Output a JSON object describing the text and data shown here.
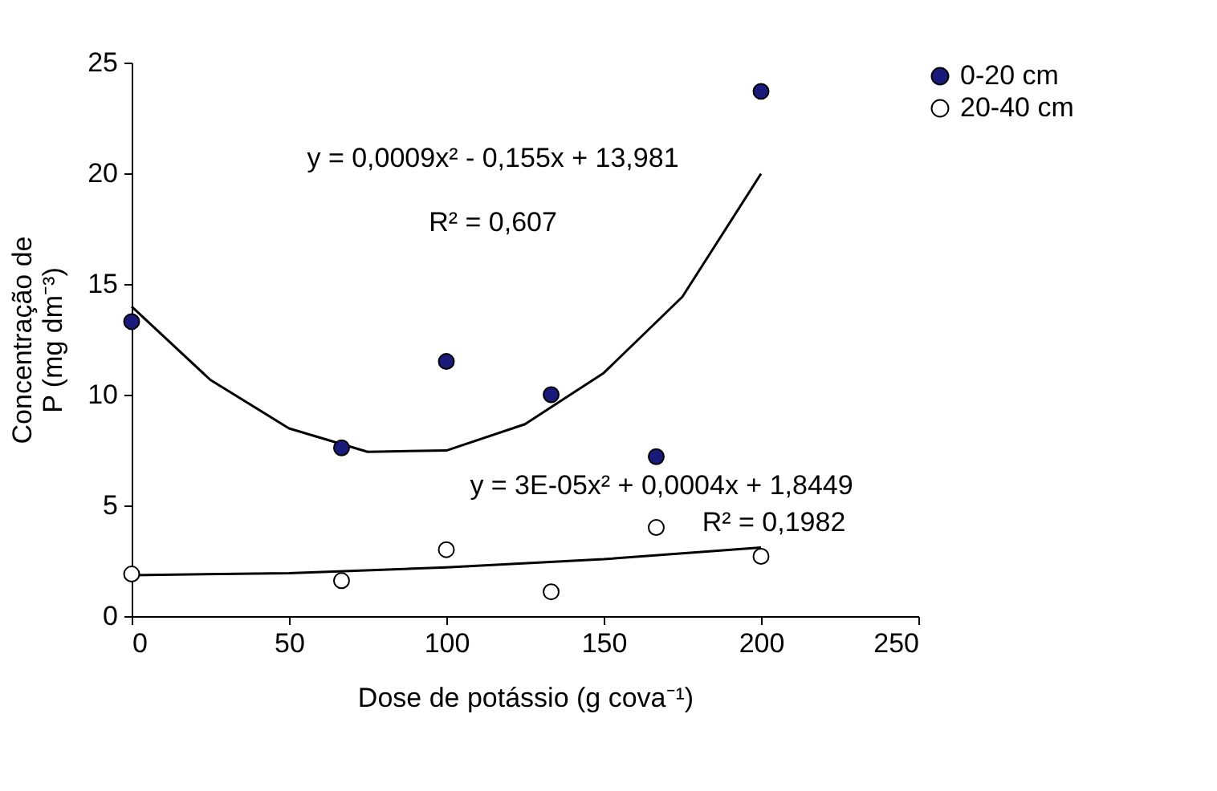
{
  "chart_data": {
    "type": "scatter",
    "xlabel": "Dose de potássio (g cova⁻¹)",
    "ylabel": "Concentração de\nP  (mg dm⁻³)",
    "xlim": [
      0,
      250
    ],
    "xticks": [
      0,
      50,
      100,
      150,
      200,
      250
    ],
    "ylim": [
      0,
      25
    ],
    "yticks": [
      0,
      5,
      10,
      15,
      20,
      25
    ],
    "x": [
      0,
      66.7,
      100,
      133.3,
      166.7,
      200
    ],
    "series": [
      {
        "name": "0-20 cm",
        "color": "#1a1a7a",
        "values": [
          13.3,
          7.6,
          11.5,
          10.0,
          7.2,
          23.7
        ]
      },
      {
        "name": "20-40 cm",
        "color": "#ffffff",
        "values": [
          1.9,
          1.6,
          3.0,
          1.1,
          4.0,
          2.7
        ]
      },
      {
        "type": "line",
        "color": "#000000",
        "marker": "none",
        "x": [
          0,
          25,
          50,
          75,
          100,
          125,
          150,
          175,
          200
        ],
        "values": [
          13.98,
          10.67,
          8.48,
          7.42,
          7.48,
          8.67,
          10.98,
          14.42,
          19.98
        ]
      },
      {
        "type": "line",
        "color": "#000000",
        "marker": "none",
        "x": [
          0,
          50,
          100,
          150,
          200
        ],
        "values": [
          1.85,
          1.94,
          2.2,
          2.57,
          3.1
        ]
      }
    ],
    "annotations": [
      "y = 0,0009x² - 0,155x + 13,981",
      "R² = 0,607",
      "y = 3E-05x² + 0,0004x + 1,8449",
      "R² = 0,1982"
    ],
    "legend": "right",
    "marker": "circle",
    "grid": false
  }
}
